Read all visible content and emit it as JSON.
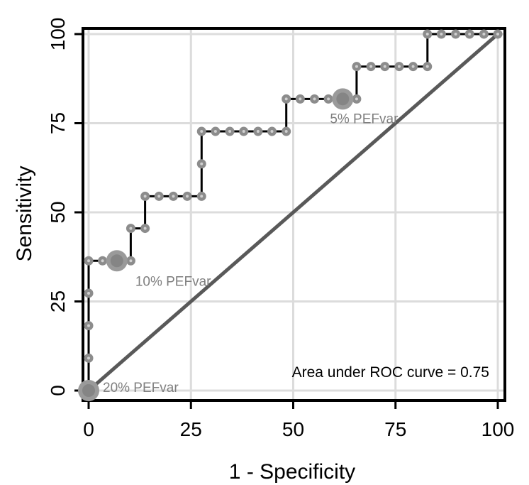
{
  "chart_data": {
    "type": "line",
    "xlabel": "1 - Specificity",
    "ylabel": "Sensitivity",
    "xlim": [
      0,
      100
    ],
    "ylim": [
      0,
      100
    ],
    "xticks": [
      0,
      25,
      50,
      75,
      100
    ],
    "yticks": [
      0,
      25,
      50,
      75,
      100
    ],
    "grid": true,
    "series": [
      {
        "style": "step",
        "color": "#000000",
        "marker_color": "#8c8c8c",
        "points": [
          [
            0,
            0
          ],
          [
            0,
            9.1
          ],
          [
            0,
            18.2
          ],
          [
            0,
            27.3
          ],
          [
            0,
            36.4
          ],
          [
            3.4,
            36.4
          ],
          [
            6.9,
            36.4
          ],
          [
            10.3,
            36.4
          ],
          [
            10.3,
            45.5
          ],
          [
            13.8,
            45.5
          ],
          [
            13.8,
            54.5
          ],
          [
            17.2,
            54.5
          ],
          [
            20.7,
            54.5
          ],
          [
            24.1,
            54.5
          ],
          [
            27.6,
            54.5
          ],
          [
            27.6,
            63.6
          ],
          [
            27.6,
            72.7
          ],
          [
            31.0,
            72.7
          ],
          [
            34.5,
            72.7
          ],
          [
            37.9,
            72.7
          ],
          [
            41.4,
            72.7
          ],
          [
            44.8,
            72.7
          ],
          [
            48.3,
            72.7
          ],
          [
            48.3,
            81.8
          ],
          [
            51.7,
            81.8
          ],
          [
            55.2,
            81.8
          ],
          [
            58.6,
            81.8
          ],
          [
            62.1,
            81.8
          ],
          [
            65.5,
            81.8
          ],
          [
            65.5,
            90.9
          ],
          [
            69.0,
            90.9
          ],
          [
            72.4,
            90.9
          ],
          [
            75.9,
            90.9
          ],
          [
            79.3,
            90.9
          ],
          [
            82.8,
            90.9
          ],
          [
            82.8,
            100
          ],
          [
            86.2,
            100
          ],
          [
            89.7,
            100
          ],
          [
            93.1,
            100
          ],
          [
            96.6,
            100
          ],
          [
            100,
            100
          ]
        ]
      },
      {
        "style": "diagonal",
        "color": "#595959",
        "points": [
          [
            0,
            0
          ],
          [
            100,
            100
          ]
        ]
      }
    ],
    "highlights": [
      {
        "x": 0,
        "y": 0,
        "label": "20% PEFvar"
      },
      {
        "x": 6.9,
        "y": 36.4,
        "label": "10% PEFvar"
      },
      {
        "x": 62.1,
        "y": 81.8,
        "label": "5% PEFvar"
      }
    ],
    "annotation": "Area under ROC curve = 0.75"
  }
}
